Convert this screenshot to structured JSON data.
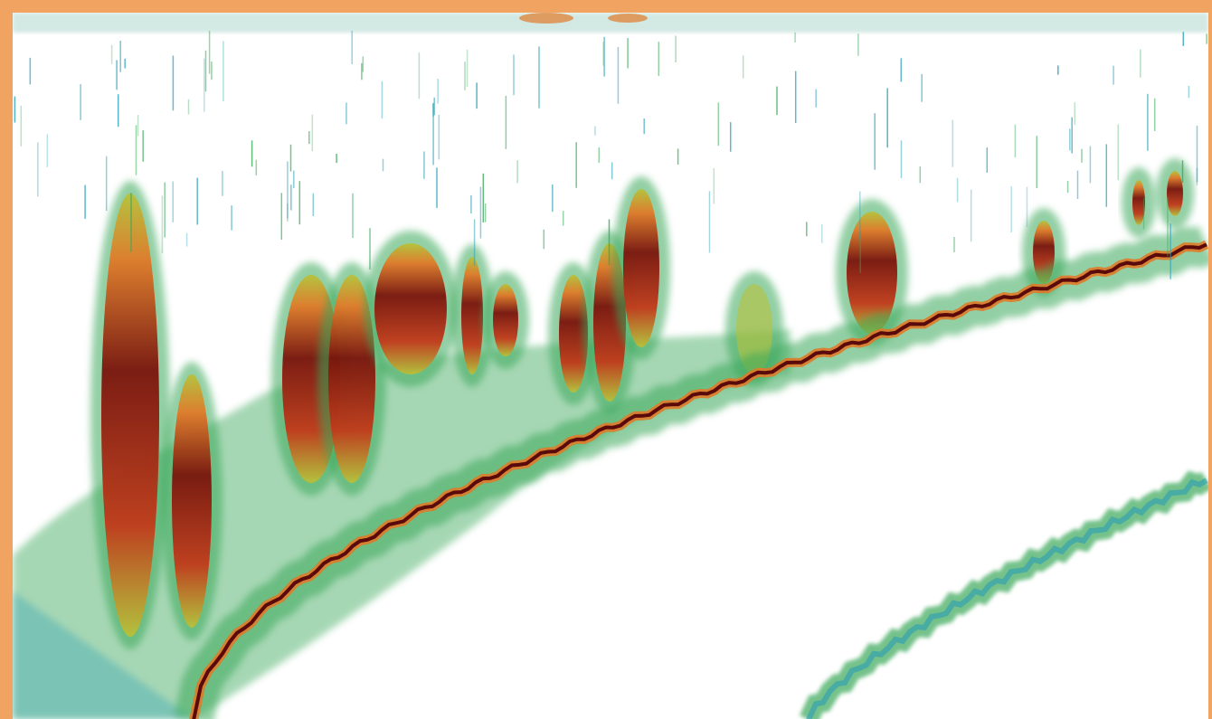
{
  "echogram": {
    "colors": {
      "frame": "#f1a461",
      "background": "#ffffff",
      "weak": "#2a9fb8",
      "low": "#3aa85a",
      "mid": "#b7c23a",
      "high": "#e07a28",
      "strong": "#c23a1a",
      "max": "#5a0a0a"
    },
    "icons": [
      "fish-school-echo",
      "seabed-line",
      "second-echo-line",
      "surface-noise"
    ]
  }
}
